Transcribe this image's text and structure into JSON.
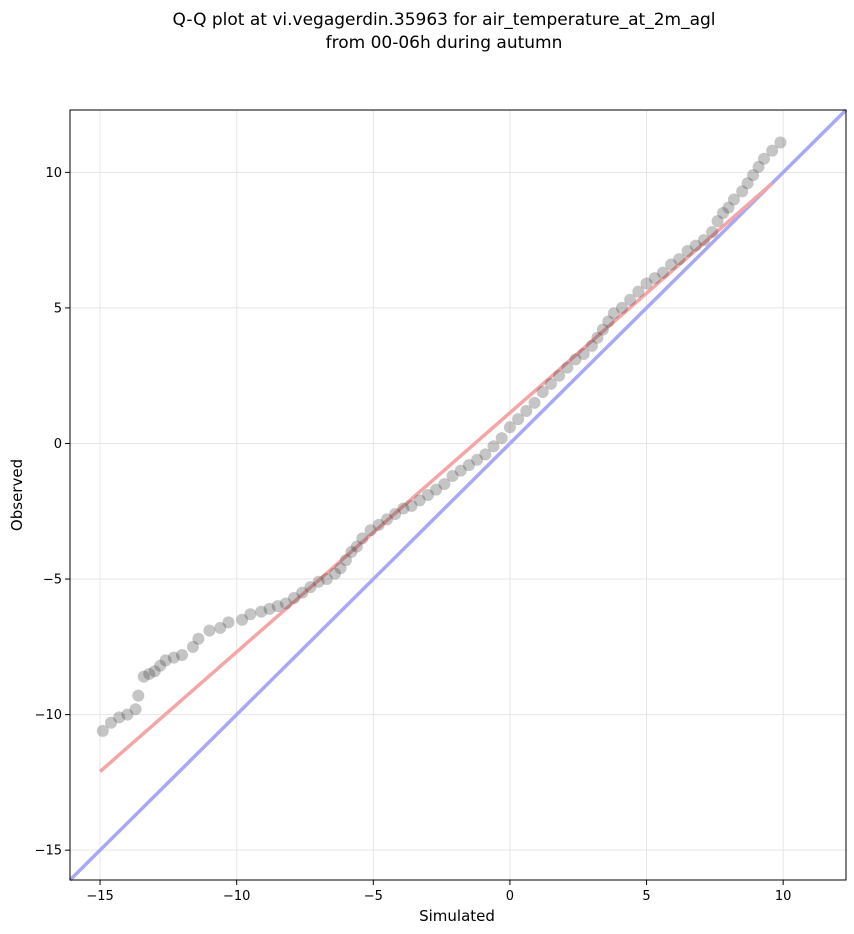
{
  "chart_data": {
    "type": "scatter",
    "title_line1": "Q-Q plot at vi.vegagerdin.35963 for air_temperature_at_2m_agl",
    "title_line2": "from 00-06h during autumn",
    "xlabel": "Simulated",
    "ylabel": "Observed",
    "xlim": [
      -16.1,
      12.3
    ],
    "ylim": [
      -16.1,
      12.3
    ],
    "xticks": [
      -15,
      -10,
      -5,
      0,
      5,
      10
    ],
    "yticks": [
      -15,
      -10,
      -5,
      0,
      5,
      10
    ],
    "xtick_labels": [
      "−15",
      "−10",
      "−5",
      "0",
      "5",
      "10"
    ],
    "ytick_labels": [
      "−15",
      "−10",
      "−5",
      "0",
      "5",
      "10"
    ],
    "grid": true,
    "marker_color": "#404040",
    "fit_line_color": "#f4a5a5",
    "identity_line_color": "#a8a8f6",
    "quantiles": [
      {
        "x": -14.9,
        "y": -10.6
      },
      {
        "x": -14.6,
        "y": -10.3
      },
      {
        "x": -14.3,
        "y": -10.1
      },
      {
        "x": -14.0,
        "y": -10.0
      },
      {
        "x": -13.7,
        "y": -9.8
      },
      {
        "x": -13.6,
        "y": -9.3
      },
      {
        "x": -13.4,
        "y": -8.6
      },
      {
        "x": -13.2,
        "y": -8.5
      },
      {
        "x": -13.0,
        "y": -8.4
      },
      {
        "x": -12.8,
        "y": -8.2
      },
      {
        "x": -12.6,
        "y": -8.0
      },
      {
        "x": -12.3,
        "y": -7.9
      },
      {
        "x": -12.0,
        "y": -7.8
      },
      {
        "x": -11.6,
        "y": -7.5
      },
      {
        "x": -11.4,
        "y": -7.2
      },
      {
        "x": -11.0,
        "y": -6.9
      },
      {
        "x": -10.6,
        "y": -6.8
      },
      {
        "x": -10.3,
        "y": -6.6
      },
      {
        "x": -9.8,
        "y": -6.5
      },
      {
        "x": -9.5,
        "y": -6.3
      },
      {
        "x": -9.1,
        "y": -6.2
      },
      {
        "x": -8.8,
        "y": -6.1
      },
      {
        "x": -8.5,
        "y": -6.0
      },
      {
        "x": -8.2,
        "y": -5.9
      },
      {
        "x": -7.9,
        "y": -5.7
      },
      {
        "x": -7.6,
        "y": -5.5
      },
      {
        "x": -7.3,
        "y": -5.3
      },
      {
        "x": -7.0,
        "y": -5.1
      },
      {
        "x": -6.7,
        "y": -5.0
      },
      {
        "x": -6.4,
        "y": -4.8
      },
      {
        "x": -6.2,
        "y": -4.6
      },
      {
        "x": -6.0,
        "y": -4.3
      },
      {
        "x": -5.8,
        "y": -4.0
      },
      {
        "x": -5.6,
        "y": -3.8
      },
      {
        "x": -5.4,
        "y": -3.5
      },
      {
        "x": -5.1,
        "y": -3.2
      },
      {
        "x": -4.8,
        "y": -3.0
      },
      {
        "x": -4.5,
        "y": -2.8
      },
      {
        "x": -4.2,
        "y": -2.6
      },
      {
        "x": -3.9,
        "y": -2.4
      },
      {
        "x": -3.6,
        "y": -2.3
      },
      {
        "x": -3.3,
        "y": -2.1
      },
      {
        "x": -3.0,
        "y": -1.9
      },
      {
        "x": -2.7,
        "y": -1.7
      },
      {
        "x": -2.4,
        "y": -1.5
      },
      {
        "x": -2.1,
        "y": -1.2
      },
      {
        "x": -1.8,
        "y": -1.0
      },
      {
        "x": -1.5,
        "y": -0.8
      },
      {
        "x": -1.2,
        "y": -0.6
      },
      {
        "x": -0.9,
        "y": -0.4
      },
      {
        "x": -0.6,
        "y": -0.1
      },
      {
        "x": -0.3,
        "y": 0.2
      },
      {
        "x": 0.0,
        "y": 0.6
      },
      {
        "x": 0.3,
        "y": 0.9
      },
      {
        "x": 0.6,
        "y": 1.2
      },
      {
        "x": 0.9,
        "y": 1.5
      },
      {
        "x": 1.2,
        "y": 1.9
      },
      {
        "x": 1.5,
        "y": 2.2
      },
      {
        "x": 1.8,
        "y": 2.5
      },
      {
        "x": 2.1,
        "y": 2.8
      },
      {
        "x": 2.4,
        "y": 3.1
      },
      {
        "x": 2.7,
        "y": 3.3
      },
      {
        "x": 3.0,
        "y": 3.6
      },
      {
        "x": 3.2,
        "y": 3.9
      },
      {
        "x": 3.4,
        "y": 4.2
      },
      {
        "x": 3.6,
        "y": 4.5
      },
      {
        "x": 3.8,
        "y": 4.8
      },
      {
        "x": 4.1,
        "y": 5.0
      },
      {
        "x": 4.4,
        "y": 5.3
      },
      {
        "x": 4.7,
        "y": 5.6
      },
      {
        "x": 5.0,
        "y": 5.9
      },
      {
        "x": 5.3,
        "y": 6.1
      },
      {
        "x": 5.6,
        "y": 6.3
      },
      {
        "x": 5.9,
        "y": 6.6
      },
      {
        "x": 6.2,
        "y": 6.8
      },
      {
        "x": 6.5,
        "y": 7.1
      },
      {
        "x": 6.8,
        "y": 7.3
      },
      {
        "x": 7.1,
        "y": 7.5
      },
      {
        "x": 7.4,
        "y": 7.8
      },
      {
        "x": 7.6,
        "y": 8.2
      },
      {
        "x": 7.8,
        "y": 8.5
      },
      {
        "x": 8.0,
        "y": 8.7
      },
      {
        "x": 8.2,
        "y": 9.0
      },
      {
        "x": 8.5,
        "y": 9.3
      },
      {
        "x": 8.7,
        "y": 9.6
      },
      {
        "x": 8.9,
        "y": 9.9
      },
      {
        "x": 9.1,
        "y": 10.2
      },
      {
        "x": 9.3,
        "y": 10.5
      },
      {
        "x": 9.6,
        "y": 10.8
      },
      {
        "x": 9.9,
        "y": 11.1
      }
    ],
    "fit_line": [
      {
        "x": -15.0,
        "y": -12.1
      },
      {
        "x": 9.6,
        "y": 9.6
      }
    ],
    "identity_line": [
      {
        "x": -16.1,
        "y": -16.1
      },
      {
        "x": 12.3,
        "y": 12.3
      }
    ]
  }
}
